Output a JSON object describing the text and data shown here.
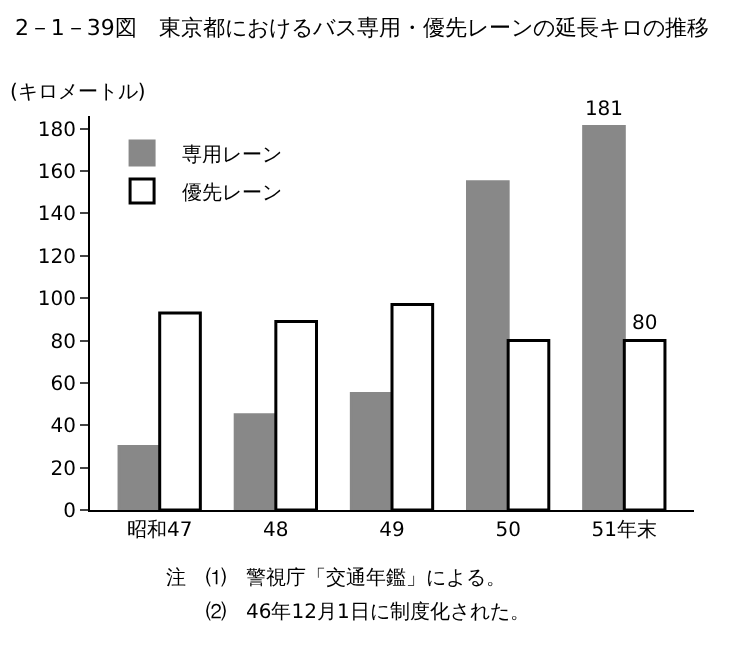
{
  "chart_data": {
    "type": "bar",
    "title": "2－1－39図　東京都におけるバス専用・優先レーンの延長キロの推移",
    "ylabel": "(キロメートル)",
    "categories": [
      "昭和47",
      "48",
      "49",
      "50",
      "51年末"
    ],
    "series": [
      {
        "name": "専用レーン",
        "color": "#888888",
        "values": [
          30,
          45,
          55,
          155,
          181
        ],
        "value_labels": [
          null,
          null,
          null,
          null,
          "181"
        ]
      },
      {
        "name": "優先レーン",
        "color": "#ffffff",
        "values": [
          93,
          89,
          97,
          80,
          80
        ],
        "value_labels": [
          null,
          null,
          null,
          null,
          "80"
        ]
      }
    ],
    "ylim": [
      0,
      186
    ],
    "yticks": [
      0,
      20,
      40,
      60,
      80,
      100,
      120,
      140,
      160,
      180
    ],
    "legend": "top left",
    "annotations": [
      "注　⑴　警視庁「交通年鑑」による。",
      "　　⑵　46年12月1日に制度化された。"
    ]
  }
}
